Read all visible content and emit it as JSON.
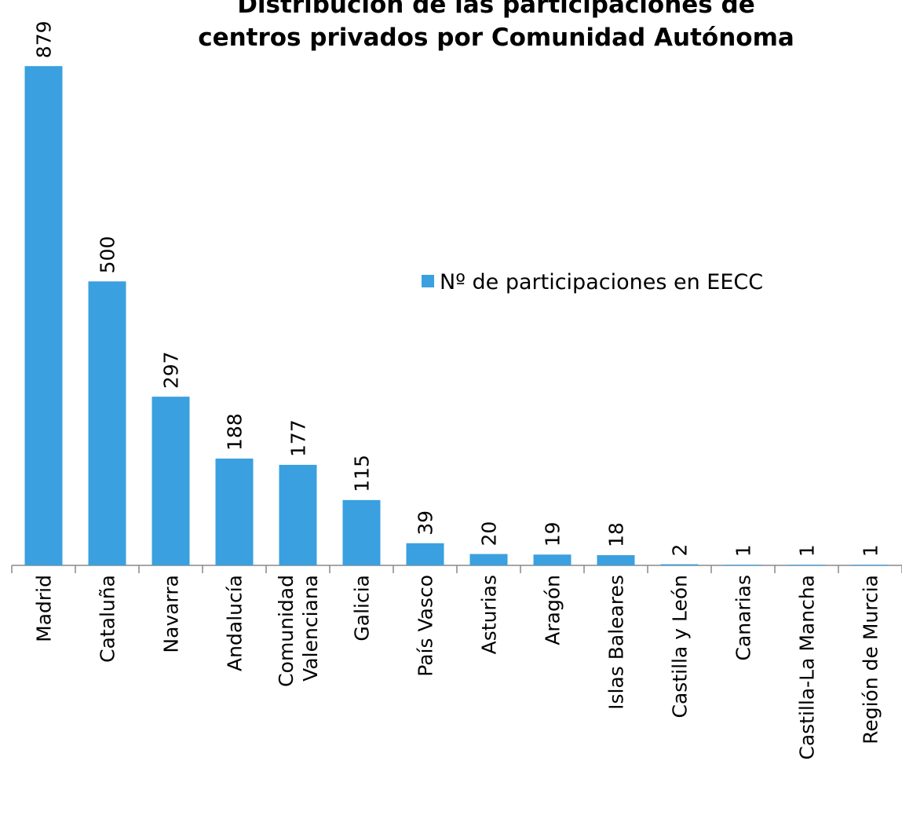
{
  "chart_data": {
    "type": "bar",
    "title": "Distribución de las participaciones de\ncentros privados por Comunidad Autónoma",
    "categories": [
      "Madrid",
      "Cataluña",
      "Navarra",
      "Andalucía",
      "Comunidad\nValenciana",
      "Galicia",
      "País Vasco",
      "Asturias",
      "Aragón",
      "Islas Baleares",
      "Castilla y León",
      "Canarias",
      "Castilla-La Mancha",
      "Región de Murcia"
    ],
    "series": [
      {
        "name": "Nº de participaciones en EECC",
        "color": "#3aa0df",
        "values": [
          879,
          500,
          297,
          188,
          177,
          115,
          39,
          20,
          19,
          18,
          2,
          1,
          1,
          1
        ]
      }
    ],
    "ylim": [
      0,
      900
    ],
    "grid": false,
    "legend": "right"
  }
}
